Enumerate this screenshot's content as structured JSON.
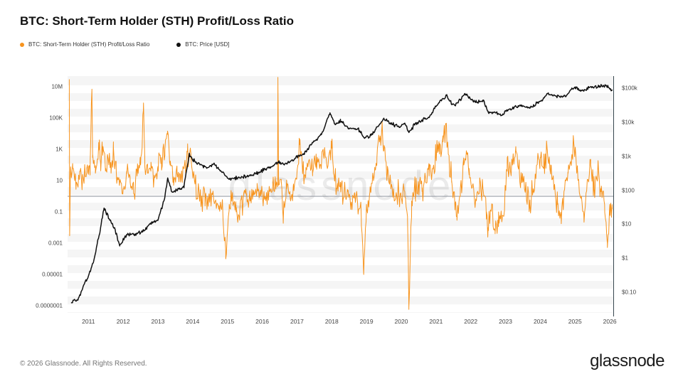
{
  "header": {
    "title": "BTC: Short-Term Holder (STH) Profit/Loss Ratio"
  },
  "legend": [
    {
      "label": "BTC: Short-Term Holder (STH) Profit/Loss Ratio",
      "color": "#f7941e"
    },
    {
      "label": "BTC: Price [USD]",
      "color": "#111111"
    }
  ],
  "watermark": "glassnode",
  "footer": {
    "copyright": "© 2026 Glassnode. All Rights Reserved.",
    "brand": "glassnode"
  },
  "colors": {
    "ratio_line": "#f7941e",
    "price_line": "#111111",
    "breakeven_line": "#8a8f98",
    "axis_line": "#37474f",
    "tick_text": "#444444"
  },
  "chart_data": {
    "type": "line",
    "title": "BTC: Short-Term Holder (STH) Profit/Loss Ratio",
    "x_range": [
      2010.4,
      2026.1
    ],
    "x_ticks": [
      "2011",
      "2012",
      "2013",
      "2014",
      "2015",
      "2016",
      "2017",
      "2018",
      "2019",
      "2020",
      "2021",
      "2022",
      "2023",
      "2024",
      "2025",
      "2026"
    ],
    "x_tick_values": [
      2011,
      2012,
      2013,
      2014,
      2015,
      2016,
      2017,
      2018,
      2019,
      2020,
      2021,
      2022,
      2023,
      2024,
      2025,
      2026
    ],
    "left_axis": {
      "scale": "log",
      "ticks": [
        "10M",
        "100K",
        "1K",
        "10",
        "0.1",
        "0.001",
        "0.00001",
        "0.0000001"
      ],
      "tick_values": [
        10000000.0,
        100000.0,
        1000.0,
        10,
        0.1,
        0.001,
        1e-05,
        1e-07
      ]
    },
    "right_axis": {
      "scale": "log",
      "ticks": [
        "$100k",
        "$10k",
        "$1k",
        "$100",
        "$10",
        "$1",
        "$0.10"
      ],
      "tick_values": [
        100000,
        10000,
        1000,
        100,
        10,
        1,
        0.1
      ]
    },
    "breakeven_value": 1,
    "grid": "horizontal-bands",
    "legend_position": "top-left",
    "noise_seed": 42,
    "samples_per_year": 52,
    "series": [
      {
        "name": "BTC: Short-Term Holder (STH) Profit/Loss Ratio",
        "axis": "left",
        "color": "#f7941e",
        "width": 1,
        "noise_decades": 1.0,
        "anchors": [
          [
            2010.45,
            30000000.0
          ],
          [
            2010.46,
            0.003
          ],
          [
            2010.48,
            20
          ],
          [
            2010.55,
            60
          ],
          [
            2010.65,
            8
          ],
          [
            2010.75,
            40
          ],
          [
            2010.85,
            15
          ],
          [
            2010.95,
            60
          ],
          [
            2011.0,
            25
          ],
          [
            2011.05,
            200
          ],
          [
            2011.1,
            7000000.0
          ],
          [
            2011.12,
            300
          ],
          [
            2011.2,
            30
          ],
          [
            2011.3,
            900
          ],
          [
            2011.35,
            150
          ],
          [
            2011.42,
            1500
          ],
          [
            2011.5,
            60
          ],
          [
            2011.6,
            400
          ],
          [
            2011.65,
            30
          ],
          [
            2011.72,
            1200
          ],
          [
            2011.8,
            40
          ],
          [
            2011.9,
            8
          ],
          [
            2012.0,
            3
          ],
          [
            2012.1,
            40
          ],
          [
            2012.2,
            8
          ],
          [
            2012.3,
            1.5
          ],
          [
            2012.4,
            20
          ],
          [
            2012.5,
            100
          ],
          [
            2012.58,
            300000.0
          ],
          [
            2012.62,
            300
          ],
          [
            2012.7,
            30
          ],
          [
            2012.8,
            150
          ],
          [
            2012.9,
            15
          ],
          [
            2013.0,
            80
          ],
          [
            2013.1,
            300
          ],
          [
            2013.2,
            1000
          ],
          [
            2013.27,
            9000
          ],
          [
            2013.35,
            100
          ],
          [
            2013.45,
            5
          ],
          [
            2013.55,
            30
          ],
          [
            2013.65,
            8
          ],
          [
            2013.75,
            60
          ],
          [
            2013.85,
            700
          ],
          [
            2013.95,
            300
          ],
          [
            2014.05,
            10
          ],
          [
            2014.15,
            2
          ],
          [
            2014.25,
            0.5
          ],
          [
            2014.35,
            1.2
          ],
          [
            2014.45,
            0.4
          ],
          [
            2014.55,
            1.5
          ],
          [
            2014.65,
            0.5
          ],
          [
            2014.75,
            0.15
          ],
          [
            2014.85,
            0.5
          ],
          [
            2014.95,
            0.0001
          ],
          [
            2015.05,
            0.3
          ],
          [
            2015.15,
            0.8
          ],
          [
            2015.25,
            0.1
          ],
          [
            2015.35,
            0.03
          ],
          [
            2015.45,
            0.6
          ],
          [
            2015.55,
            1.5
          ],
          [
            2015.65,
            0.5
          ],
          [
            2015.75,
            1.2
          ],
          [
            2015.85,
            2.5
          ],
          [
            2015.95,
            1
          ],
          [
            2016.05,
            2
          ],
          [
            2016.15,
            0.8
          ],
          [
            2016.25,
            3
          ],
          [
            2016.35,
            2
          ],
          [
            2016.44,
            4
          ],
          [
            2016.45,
            40000000.0
          ],
          [
            2016.47,
            5
          ],
          [
            2016.55,
            8
          ],
          [
            2016.6,
            0.05
          ],
          [
            2016.7,
            3
          ],
          [
            2016.8,
            1
          ],
          [
            2016.9,
            6
          ],
          [
            2017.0,
            30
          ],
          [
            2017.08,
            2000
          ],
          [
            2017.15,
            100
          ],
          [
            2017.25,
            15
          ],
          [
            2017.35,
            200
          ],
          [
            2017.45,
            30
          ],
          [
            2017.55,
            500
          ],
          [
            2017.65,
            60
          ],
          [
            2017.75,
            1000
          ],
          [
            2017.85,
            150
          ],
          [
            2017.95,
            900
          ],
          [
            2018.0,
            1200
          ],
          [
            2018.05,
            30
          ],
          [
            2018.15,
            3
          ],
          [
            2018.25,
            8
          ],
          [
            2018.35,
            0.8
          ],
          [
            2018.45,
            2
          ],
          [
            2018.55,
            0.3
          ],
          [
            2018.65,
            1.5
          ],
          [
            2018.75,
            0.2
          ],
          [
            2018.85,
            0.05
          ],
          [
            2018.92,
            1e-05
          ],
          [
            2019.0,
            0.3
          ],
          [
            2019.1,
            2
          ],
          [
            2019.2,
            10
          ],
          [
            2019.3,
            300
          ],
          [
            2019.4,
            5000
          ],
          [
            2019.45,
            60000.0
          ],
          [
            2019.5,
            800
          ],
          [
            2019.6,
            30
          ],
          [
            2019.7,
            3
          ],
          [
            2019.8,
            0.5
          ],
          [
            2019.9,
            1.5
          ],
          [
            2020.0,
            0.8
          ],
          [
            2020.1,
            2
          ],
          [
            2020.18,
            0.05
          ],
          [
            2020.22,
            8e-08
          ],
          [
            2020.3,
            0.5
          ],
          [
            2020.4,
            3
          ],
          [
            2020.5,
            5
          ],
          [
            2020.6,
            2
          ],
          [
            2020.7,
            8
          ],
          [
            2020.8,
            20
          ],
          [
            2020.9,
            60
          ],
          [
            2021.0,
            300
          ],
          [
            2021.05,
            2000
          ],
          [
            2021.1,
            500
          ],
          [
            2021.2,
            3000
          ],
          [
            2021.3,
            30000.0
          ],
          [
            2021.35,
            1000
          ],
          [
            2021.45,
            10
          ],
          [
            2021.55,
            0.3
          ],
          [
            2021.6,
            0.05
          ],
          [
            2021.7,
            3
          ],
          [
            2021.8,
            100
          ],
          [
            2021.9,
            600
          ],
          [
            2021.95,
            60
          ],
          [
            2022.05,
            5
          ],
          [
            2022.15,
            0.5
          ],
          [
            2022.25,
            2
          ],
          [
            2022.35,
            3
          ],
          [
            2022.45,
            0.1
          ],
          [
            2022.5,
            0.01
          ],
          [
            2022.6,
            0.2
          ],
          [
            2022.7,
            0.004
          ],
          [
            2022.8,
            0.1
          ],
          [
            2022.9,
            0.03
          ],
          [
            2023.0,
            3
          ],
          [
            2023.05,
            300
          ],
          [
            2023.1,
            30
          ],
          [
            2023.2,
            100
          ],
          [
            2023.3,
            800
          ],
          [
            2023.4,
            30
          ],
          [
            2023.5,
            8
          ],
          [
            2023.6,
            1
          ],
          [
            2023.7,
            0.3
          ],
          [
            2023.8,
            3
          ],
          [
            2023.9,
            100
          ],
          [
            2024.0,
            300
          ],
          [
            2024.1,
            60
          ],
          [
            2024.2,
            1000
          ],
          [
            2024.3,
            100
          ],
          [
            2024.4,
            3
          ],
          [
            2024.5,
            0.3
          ],
          [
            2024.6,
            0.05
          ],
          [
            2024.7,
            3
          ],
          [
            2024.8,
            30
          ],
          [
            2024.9,
            300
          ],
          [
            2024.97,
            2000
          ],
          [
            2025.05,
            30
          ],
          [
            2025.15,
            1
          ],
          [
            2025.25,
            0.08
          ],
          [
            2025.35,
            10
          ],
          [
            2025.45,
            100
          ],
          [
            2025.55,
            3
          ],
          [
            2025.65,
            30
          ],
          [
            2025.75,
            2
          ],
          [
            2025.85,
            0.3
          ],
          [
            2025.93,
            0.001
          ],
          [
            2026.0,
            0.3
          ],
          [
            2026.07,
            0.15
          ]
        ]
      },
      {
        "name": "BTC: Price [USD]",
        "axis": "right",
        "color": "#111111",
        "width": 1.5,
        "noise_decades": 0.06,
        "anchors": [
          [
            2010.5,
            0.05
          ],
          [
            2010.7,
            0.06
          ],
          [
            2010.9,
            0.2
          ],
          [
            2011.0,
            0.3
          ],
          [
            2011.15,
            0.8
          ],
          [
            2011.35,
            8
          ],
          [
            2011.45,
            30
          ],
          [
            2011.6,
            14
          ],
          [
            2011.75,
            8
          ],
          [
            2011.9,
            2.3
          ],
          [
            2012.1,
            5
          ],
          [
            2012.3,
            5
          ],
          [
            2012.6,
            6.5
          ],
          [
            2012.8,
            11
          ],
          [
            2013.0,
            13
          ],
          [
            2013.2,
            65
          ],
          [
            2013.28,
            230
          ],
          [
            2013.4,
            90
          ],
          [
            2013.55,
            100
          ],
          [
            2013.75,
            130
          ],
          [
            2013.9,
            1150
          ],
          [
            2014.0,
            800
          ],
          [
            2014.15,
            620
          ],
          [
            2014.4,
            450
          ],
          [
            2014.6,
            600
          ],
          [
            2014.8,
            380
          ],
          [
            2015.05,
            210
          ],
          [
            2015.3,
            240
          ],
          [
            2015.6,
            260
          ],
          [
            2015.85,
            320
          ],
          [
            2016.1,
            420
          ],
          [
            2016.45,
            670
          ],
          [
            2016.6,
            600
          ],
          [
            2016.9,
            750
          ],
          [
            2017.0,
            1000
          ],
          [
            2017.2,
            1200
          ],
          [
            2017.45,
            2500
          ],
          [
            2017.7,
            4300
          ],
          [
            2017.95,
            19000
          ],
          [
            2018.1,
            8500
          ],
          [
            2018.25,
            11000
          ],
          [
            2018.5,
            6500
          ],
          [
            2018.75,
            6500
          ],
          [
            2018.95,
            3400
          ],
          [
            2019.1,
            3900
          ],
          [
            2019.35,
            8000
          ],
          [
            2019.5,
            12500
          ],
          [
            2019.7,
            9500
          ],
          [
            2019.95,
            7200
          ],
          [
            2020.1,
            9500
          ],
          [
            2020.22,
            5000
          ],
          [
            2020.4,
            9000
          ],
          [
            2020.6,
            11500
          ],
          [
            2020.8,
            13800
          ],
          [
            2021.0,
            29000
          ],
          [
            2021.1,
            40000
          ],
          [
            2021.3,
            61000
          ],
          [
            2021.45,
            35000
          ],
          [
            2021.55,
            31500
          ],
          [
            2021.7,
            47000
          ],
          [
            2021.85,
            67000
          ],
          [
            2022.0,
            47000
          ],
          [
            2022.2,
            38000
          ],
          [
            2022.35,
            45000
          ],
          [
            2022.5,
            20000
          ],
          [
            2022.7,
            19500
          ],
          [
            2022.9,
            16000
          ],
          [
            2023.05,
            23000
          ],
          [
            2023.25,
            28000
          ],
          [
            2023.5,
            30000
          ],
          [
            2023.7,
            26000
          ],
          [
            2023.9,
            37000
          ],
          [
            2024.05,
            44000
          ],
          [
            2024.2,
            69000
          ],
          [
            2024.35,
            63000
          ],
          [
            2024.55,
            57000
          ],
          [
            2024.75,
            62000
          ],
          [
            2024.9,
            95000
          ],
          [
            2025.0,
            102000
          ],
          [
            2025.1,
            95000
          ],
          [
            2025.25,
            82000
          ],
          [
            2025.4,
            105000
          ],
          [
            2025.55,
            108000
          ],
          [
            2025.7,
            118000
          ],
          [
            2025.8,
            112000
          ],
          [
            2025.9,
            121000
          ],
          [
            2026.0,
            95000
          ],
          [
            2026.07,
            92000
          ]
        ]
      }
    ]
  }
}
